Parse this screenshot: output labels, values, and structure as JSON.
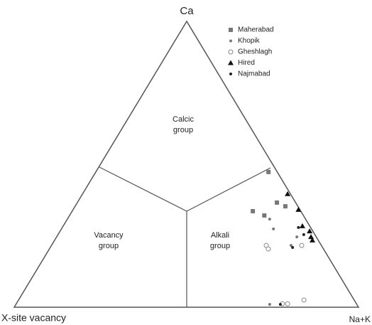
{
  "chart_data": {
    "type": "ternary",
    "vertex_labels": {
      "top": "Ca",
      "left": "X-site vacancy",
      "right": "Na+K"
    },
    "regions": [
      [
        "Calcic",
        "group"
      ],
      [
        "Vacancy",
        "group"
      ],
      [
        "Alkali",
        "group"
      ]
    ],
    "legend": "top-right",
    "series": [
      {
        "name": "Maherabad",
        "color": "#777777",
        "marker": "square",
        "ca": [
          0.473,
          0.336,
          0.321,
          0.366,
          0.353
        ],
        "nak": [
          0.502,
          0.525,
          0.566,
          0.58,
          0.611
        ]
      },
      {
        "name": "Khopik",
        "color": "#777777",
        "marker": "dot",
        "ca": [
          0.308,
          0.274,
          0.216,
          0.246,
          0.01
        ],
        "nak": [
          0.588,
          0.616,
          0.696,
          0.698,
          0.737
        ]
      },
      {
        "name": "Gheshlagh",
        "color": "#888888",
        "marker": "circle",
        "ca": [
          0.216,
          0.204,
          0.216,
          0.012,
          0.012,
          0.025
        ],
        "nak": [
          0.624,
          0.636,
          0.727,
          0.773,
          0.788,
          0.829
        ]
      },
      {
        "name": "Hired",
        "color": "#111111",
        "marker": "triangle",
        "ca": [
          0.396,
          0.341,
          0.284,
          0.266,
          0.246,
          0.234
        ],
        "nak": [
          0.596,
          0.655,
          0.695,
          0.725,
          0.739,
          0.749
        ]
      },
      {
        "name": "Najmabad",
        "color": "#222222",
        "marker": "dot",
        "ca": [
          0.279,
          0.254,
          0.209,
          0.01
        ],
        "nak": [
          0.686,
          0.714,
          0.704,
          0.768
        ]
      }
    ]
  }
}
